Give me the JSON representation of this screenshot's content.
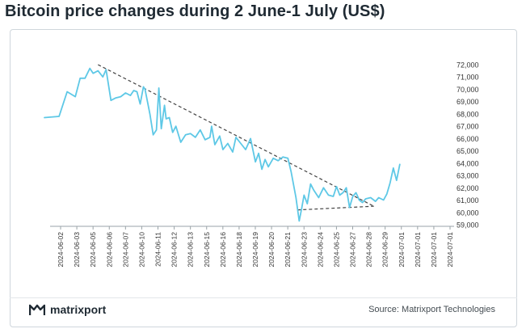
{
  "title": "Bitcoin price changes during 2 June-1 July (US$)",
  "brand": {
    "name": "matrixport",
    "logo_icon": "matrixport-logo-icon"
  },
  "source": "Source: Matrixport Technologies",
  "colors": {
    "line": "#5ec8e6",
    "trend": "#444444",
    "axis": "#9aa3a8",
    "text": "#333333"
  },
  "chart_data": {
    "type": "line",
    "title": "",
    "xlabel": "",
    "ylabel": "",
    "ylim": [
      59000,
      72000
    ],
    "yticks": [
      59000,
      60000,
      61000,
      62000,
      63000,
      64000,
      65000,
      66000,
      67000,
      68000,
      69000,
      70000,
      71000,
      72000
    ],
    "ytick_labels": [
      "59,000",
      "60,000",
      "61,000",
      "62,000",
      "63,000",
      "64,000",
      "65,000",
      "66,000",
      "67,000",
      "68,000",
      "69,000",
      "70,000",
      "71,000",
      "72,000"
    ],
    "x_tick_labels": [
      "2024-06-02",
      "2024-06-03",
      "2024-06-05",
      "2024-06-06",
      "2024-06-07",
      "2024-06-10",
      "2024-06-11",
      "2024-06-12",
      "2024-06-13",
      "2024-06-15",
      "2024-06-16",
      "2024-06-18",
      "2024-06-19",
      "2024-06-20",
      "2024-06-21",
      "2024-06-23",
      "2024-06-24",
      "2024-06-25",
      "2024-06-27",
      "2024-06-28",
      "2024-06-29",
      "2024-07-01",
      "2024-07-01",
      "2024-07-01",
      "2024-07-01"
    ],
    "grid": false,
    "series": [
      {
        "x": [
          0.0,
          0.9,
          1.4,
          1.9,
          2.2,
          2.5,
          2.8,
          3.0,
          3.3,
          3.6,
          3.8,
          4.1,
          4.4,
          4.7,
          5.0,
          5.3,
          5.5,
          5.7,
          5.9,
          6.1,
          6.2,
          6.5,
          6.7,
          6.9,
          7.05,
          7.2,
          7.4,
          7.5,
          7.7,
          7.9,
          8.1,
          8.4,
          8.7,
          9.0,
          9.3,
          9.6,
          9.9,
          10.2,
          10.3,
          10.5,
          10.8,
          11.0,
          11.3,
          11.6,
          11.8,
          12.1,
          12.4,
          12.7,
          13.0,
          13.2,
          13.4,
          13.6,
          13.8,
          14.1,
          14.4,
          14.7,
          15.0,
          15.2,
          15.5,
          15.7,
          15.85,
          16.0,
          16.2,
          16.4,
          16.6,
          16.9,
          17.2,
          17.5,
          17.8,
          18.0,
          18.2,
          18.4,
          18.6,
          18.8,
          19.0,
          19.2,
          19.4,
          19.6,
          19.8,
          20.1,
          20.4,
          20.6,
          20.9,
          21.1,
          21.3,
          21.5,
          21.7,
          21.9
        ],
        "values": [
          67700,
          67800,
          69800,
          69400,
          70900,
          70900,
          71700,
          71300,
          71500,
          71000,
          71600,
          69100,
          69300,
          69400,
          69700,
          69500,
          69900,
          69800,
          68800,
          70200,
          70000,
          68000,
          66300,
          66700,
          70100,
          66800,
          68700,
          67600,
          67700,
          66500,
          67000,
          65700,
          66300,
          66400,
          66100,
          66700,
          65900,
          66100,
          67000,
          65500,
          66200,
          65100,
          65600,
          64900,
          66100,
          65600,
          65100,
          66000,
          64100,
          64800,
          63500,
          64300,
          63700,
          64400,
          64200,
          64500,
          64400,
          63300,
          61200,
          59300,
          60300,
          61400,
          60700,
          62300,
          61800,
          61200,
          62000,
          61400,
          61300,
          62100,
          61400,
          61600,
          62000,
          60400,
          61300,
          61600,
          61000,
          60800,
          61100,
          61200,
          60900,
          61200,
          61000,
          61500,
          62400,
          63600,
          62600,
          63900
        ]
      }
    ],
    "trendlines": [
      {
        "x": [
          3.3,
          20.3
        ],
        "values": [
          72000,
          60500
        ]
      },
      {
        "x": [
          15.6,
          20.3
        ],
        "values": [
          60200,
          60500
        ]
      }
    ]
  }
}
